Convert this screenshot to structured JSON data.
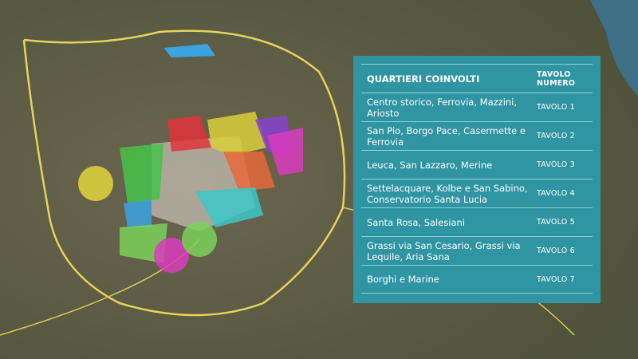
{
  "colors": {
    "panel": "#2f95a3",
    "ring_road": "#e6d25a",
    "sea": "#3f6f86"
  },
  "districts": [
    {
      "name": "Tavolo 1 - centro",
      "color": "#b9b1a6"
    },
    {
      "name": "red",
      "color": "#e0343a"
    },
    {
      "name": "yellow",
      "color": "#d8cf3a"
    },
    {
      "name": "purple",
      "color": "#8a3fd0"
    },
    {
      "name": "magenta",
      "color": "#d93cbd"
    },
    {
      "name": "orange",
      "color": "#e6683a"
    },
    {
      "name": "cyan",
      "color": "#3cc8c8"
    },
    {
      "name": "green",
      "color": "#46c24a"
    },
    {
      "name": "blue",
      "color": "#3aa3e0"
    },
    {
      "name": "light-green",
      "color": "#7ad15a"
    }
  ],
  "table": {
    "header": {
      "quartieri": "QUARTIERI COINVOLTI",
      "tavolo": "TAVOLO NUMERO"
    },
    "rows": [
      {
        "quartieri": "Centro storico, Ferrovia, Mazzini, Ariosto",
        "tavolo": "TAVOLO 1"
      },
      {
        "quartieri": "San Pio, Borgo Pace, Casermette e Ferrovia",
        "tavolo": "TAVOLO 2"
      },
      {
        "quartieri": "Leuca, San Lazzaro, Merine",
        "tavolo": "TAVOLO 3"
      },
      {
        "quartieri": "Settelacquare, Kolbe e San Sabino, Conservatorio Santa Lucia",
        "tavolo": "TAVOLO 4"
      },
      {
        "quartieri": "Santa Rosa, Salesiani",
        "tavolo": "TAVOLO 5"
      },
      {
        "quartieri": "Grassi via San Cesario, Grassi via Lequile, Aria Sana",
        "tavolo": "TAVOLO 6"
      },
      {
        "quartieri": "Borghi e Marine",
        "tavolo": "TAVOLO 7"
      }
    ]
  }
}
